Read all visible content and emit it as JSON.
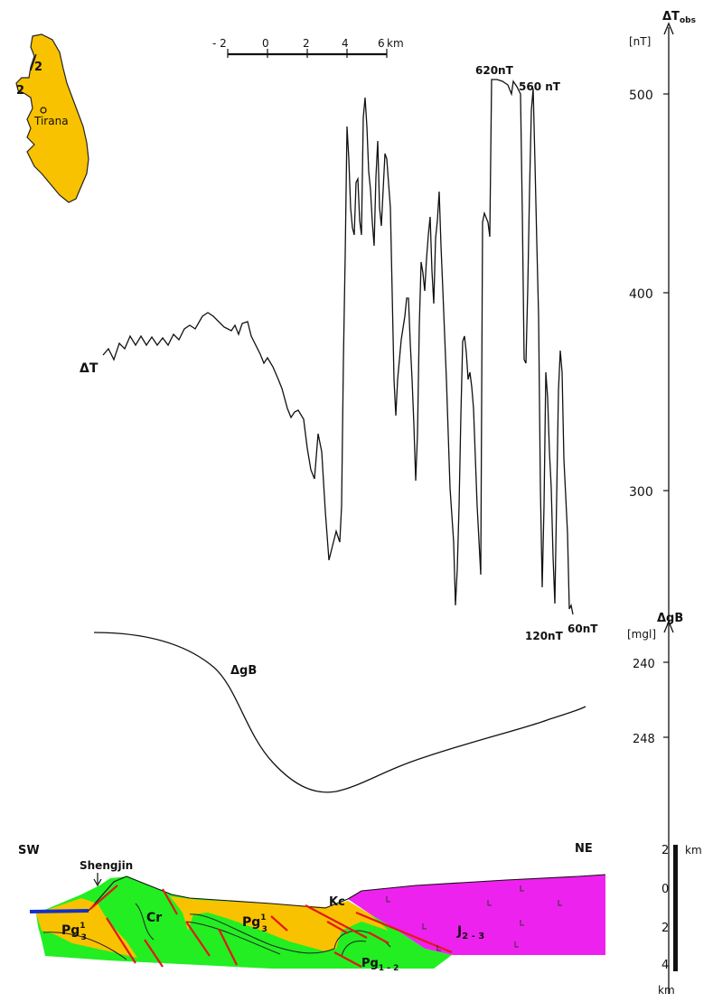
{
  "inset_map": {
    "city": "Tirana",
    "markers": [
      "2",
      "2"
    ]
  },
  "scale_bar": {
    "ticks": [
      "- 2",
      "0",
      "2",
      "4",
      "6"
    ],
    "unit": "km"
  },
  "magnetic_profile": {
    "curve_label": "ΔT",
    "axis_title": "ΔT",
    "axis_title_sub": "obs",
    "axis_unit": "[nT]",
    "axis_ticks": [
      "500",
      "400",
      "300"
    ],
    "annotations": [
      "620nT",
      "560 nT",
      "120nT",
      "60nT"
    ]
  },
  "gravity_profile": {
    "curve_label": "ΔgB",
    "axis_title": "ΔgB",
    "axis_unit": "[mgl]",
    "axis_ticks": [
      "240",
      "248"
    ]
  },
  "section": {
    "left_end": "SW",
    "right_end": "NE",
    "locality": "Shengjin",
    "units": {
      "pg_left": "Pg",
      "pg_left_sup": "1",
      "pg_left_sub": "3",
      "cr": "Cr",
      "pg_mid": "Pg",
      "pg_mid_sup": "1",
      "pg_mid_sub": "3",
      "kc": "Kc",
      "j": "J",
      "j_sub": "2 - 3",
      "pg12": "Pg",
      "pg12_sub": "1 - 2"
    },
    "depth_unit_top": "km",
    "depth_ticks": [
      "2",
      "0",
      "2",
      "4"
    ],
    "depth_unit_bottom": "km",
    "colors": {
      "paleogene": "#f9c200",
      "cretaceous": "#22ee22",
      "jurassic": "#ee22ee",
      "faults": "#e21818",
      "sea": "#1430c8"
    }
  }
}
